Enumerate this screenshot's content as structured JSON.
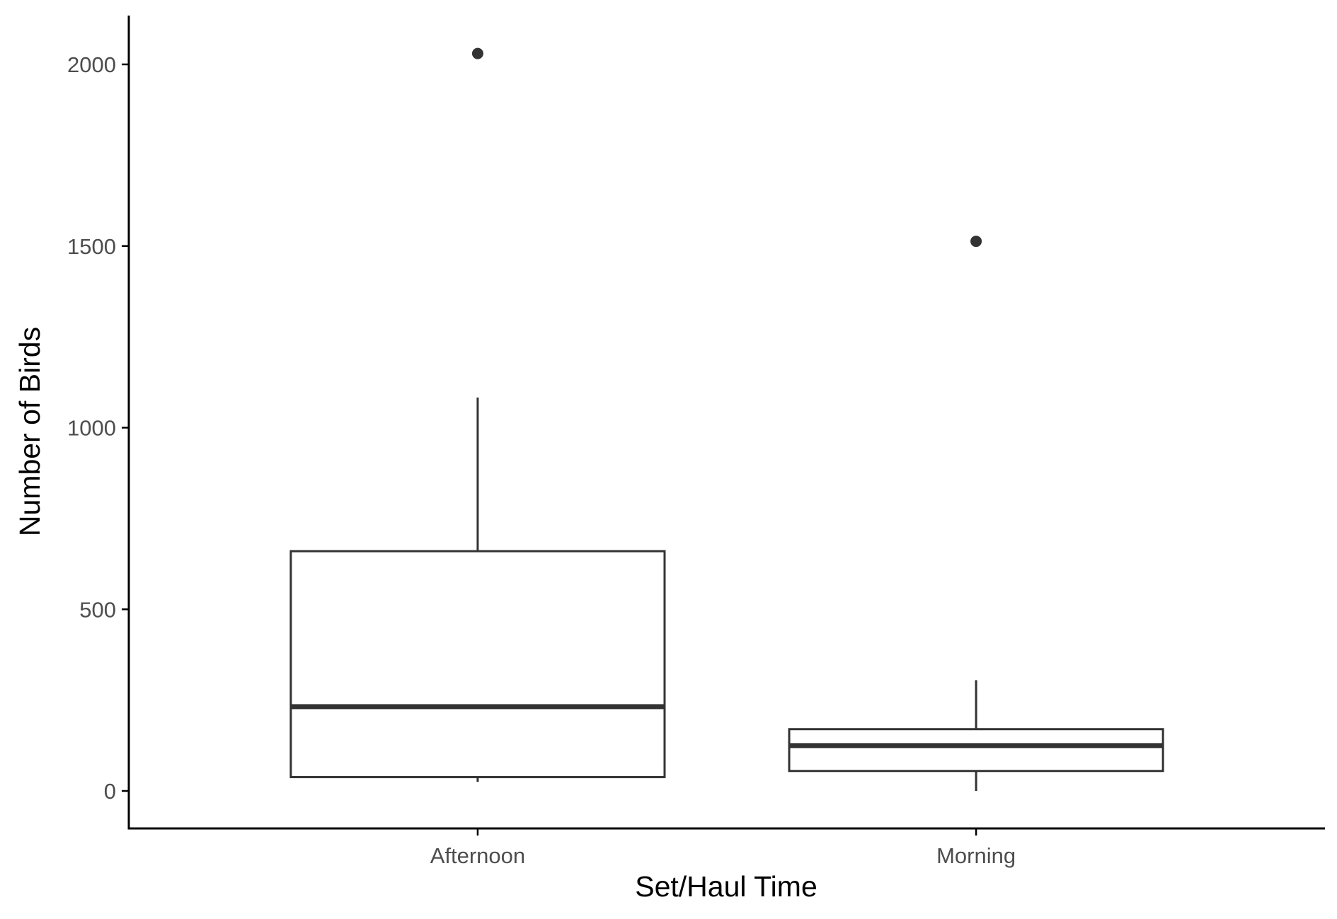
{
  "chart_data": {
    "type": "boxplot",
    "xlabel": "Set/Haul Time",
    "ylabel": "Number of Birds",
    "categories": [
      "Afternoon",
      "Morning"
    ],
    "boxes": [
      {
        "category": "Afternoon",
        "whisker_low": 25,
        "q1": 38,
        "median": 232,
        "q3": 660,
        "whisker_high": 1083,
        "outliers": [
          2030
        ]
      },
      {
        "category": "Morning",
        "whisker_low": 0,
        "q1": 55,
        "median": 125,
        "q3": 170,
        "whisker_high": 305,
        "outliers": [
          1513
        ]
      }
    ],
    "ylim": [
      -100,
      2230
    ],
    "yticks": [
      0,
      500,
      1000,
      1500,
      2000
    ],
    "grid": false,
    "legend": "none",
    "colors": {
      "box_stroke": "#333333",
      "box_fill": "#ffffff",
      "axis": "#000000",
      "tick_text": "#4d4d4d"
    }
  }
}
